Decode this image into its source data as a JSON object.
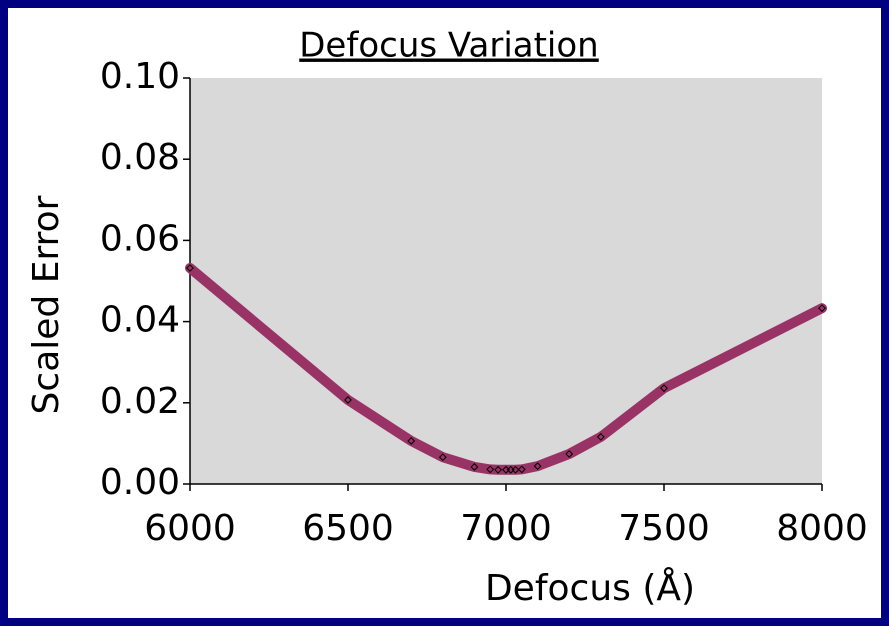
{
  "chart_data": {
    "type": "line",
    "title": "Defocus Variation",
    "x_label": "Defocus (Å)",
    "y_label": "Scaled Error",
    "x": [
      6000,
      6500,
      6700,
      6800,
      6900,
      6950,
      6975,
      7000,
      7015,
      7030,
      7050,
      7100,
      7200,
      7300,
      7500,
      8000
    ],
    "values": [
      0.0532,
      0.0207,
      0.0106,
      0.0066,
      0.0042,
      0.0036,
      0.0035,
      0.0035,
      0.0035,
      0.0035,
      0.0036,
      0.0044,
      0.0074,
      0.0116,
      0.0236,
      0.0433
    ],
    "color": "#993366",
    "marker_color": "#000000",
    "xlim": [
      6000,
      8000
    ],
    "xticks": [
      6000,
      6500,
      7000,
      7500,
      8000
    ],
    "ylim": [
      0,
      0.1
    ],
    "yticks": [
      {
        "value": 0,
        "label": "0.00"
      },
      0.02,
      0.04,
      0.06,
      0.08,
      {
        "value": 0.1,
        "label": "0.10"
      }
    ],
    "grid": false
  }
}
